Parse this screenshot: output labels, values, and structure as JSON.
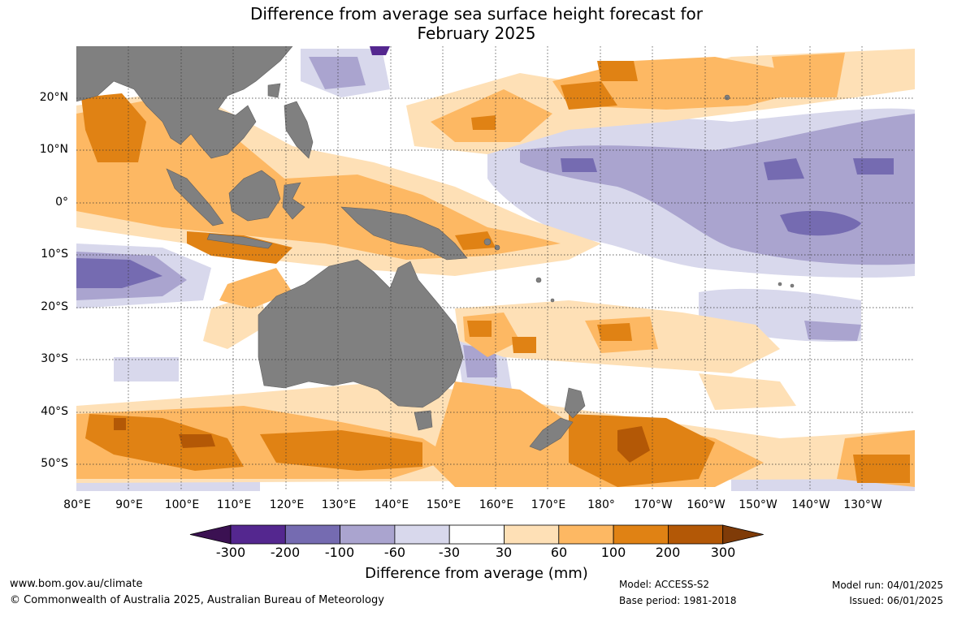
{
  "title_line1": "Difference from average sea surface height forecast for",
  "title_line2": "February 2025",
  "lat_labels": [
    "20°N",
    "10°N",
    "0°",
    "10°S",
    "20°S",
    "30°S",
    "40°S",
    "50°S"
  ],
  "lon_labels": [
    "80°E",
    "90°E",
    "100°E",
    "110°E",
    "120°E",
    "130°E",
    "140°E",
    "150°E",
    "160°E",
    "170°E",
    "180°",
    "170°W",
    "160°W",
    "150°W",
    "140°W",
    "130°W"
  ],
  "colorbar": {
    "title": "Difference from average (mm)",
    "labels": [
      "-300",
      "-200",
      "-100",
      "-60",
      "-30",
      "30",
      "60",
      "100",
      "200",
      "300"
    ],
    "colors": [
      "#3b1152",
      "#54278f",
      "#756bb1",
      "#aaa4cf",
      "#d8d8ec",
      "#ffffff",
      "#fee0b6",
      "#fdb863",
      "#e08214",
      "#b35806",
      "#7f3b08"
    ]
  },
  "footer": {
    "website": "www.bom.gov.au/climate",
    "copyright": "© Commonwealth of Australia 2025, Australian Bureau of Meteorology",
    "model": "Model: ACCESS-S2",
    "base_period": "Base period: 1981-2018",
    "model_run": "Model run: 04/01/2025",
    "issued": "Issued: 06/01/2025"
  },
  "colors": {
    "land": "#808080"
  }
}
